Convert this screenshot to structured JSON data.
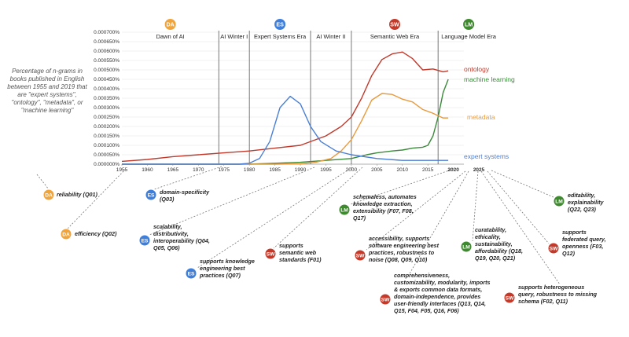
{
  "description": "Percentage of n-grams in books published in English between 1955 and 2019 that are \"expert systems\", \"ontology\", \"metadata\", or \"machine learning\"",
  "colors": {
    "ontology": "#c0392b",
    "machine_learning": "#3a8a3a",
    "metadata": "#e89a3c",
    "expert_systems": "#4a7fd4",
    "DA": "#f0a43a",
    "ES": "#3f7fdc",
    "SW": "#c33a2a",
    "LM": "#3e8a2e"
  },
  "eras": [
    {
      "label": "Dawn of AI",
      "badge": "DA"
    },
    {
      "label": "AI Winter I",
      "badge": ""
    },
    {
      "label": "Expert Systems Era",
      "badge": "ES"
    },
    {
      "label": "AI Winter II",
      "badge": ""
    },
    {
      "label": "Semantic Web Era",
      "badge": "SW"
    },
    {
      "label": "Language Model Era",
      "badge": "LM"
    }
  ],
  "chart_data": {
    "type": "line",
    "xlim": [
      1955,
      2029
    ],
    "ylim": [
      0,
      0.0007
    ],
    "x_ticks": [
      "1955",
      "1960",
      "1965",
      "1970",
      "1975",
      "1980",
      "1985",
      "1990",
      "1995",
      "2000",
      "2005",
      "2010",
      "2015"
    ],
    "x_ticks_extra": [
      "2020",
      "2025"
    ],
    "y_ticks": [
      "0.000000%",
      "0.000050%",
      "0.000100%",
      "0.000150%",
      "0.000200%",
      "0.000250%",
      "0.000300%",
      "0.000350%",
      "0.000400%",
      "0.000450%",
      "0.000500%",
      "0.000550%",
      "0.000600%",
      "0.000650%",
      "0.000700%"
    ],
    "era_boundaries": [
      1974,
      1980,
      1992,
      2000,
      2017
    ],
    "series": [
      {
        "name": "ontology",
        "key": "ontology",
        "x": [
          1955,
          1960,
          1965,
          1970,
          1975,
          1980,
          1985,
          1990,
          1995,
          1998,
          2000,
          2002,
          2004,
          2006,
          2008,
          2010,
          2012,
          2014,
          2016,
          2018,
          2019
        ],
        "y": [
          1.5e-05,
          2.5e-05,
          4e-05,
          5e-05,
          6e-05,
          7e-05,
          8.5e-05,
          0.0001,
          0.00015,
          0.0002,
          0.00025,
          0.00035,
          0.00047,
          0.000555,
          0.000585,
          0.000595,
          0.00056,
          0.0005,
          0.000505,
          0.00049,
          0.000495
        ]
      },
      {
        "name": "machine learning",
        "key": "machine_learning",
        "x": [
          1955,
          1980,
          1985,
          1990,
          1995,
          2000,
          2003,
          2005,
          2008,
          2010,
          2012,
          2014,
          2015,
          2016,
          2017,
          2018,
          2019
        ],
        "y": [
          0,
          0,
          5e-06,
          1e-05,
          2e-05,
          3e-05,
          5e-05,
          6e-05,
          7e-05,
          7.5e-05,
          8.5e-05,
          9e-05,
          0.0001,
          0.00015,
          0.00025,
          0.00038,
          0.00045
        ]
      },
      {
        "name": "metadata",
        "key": "metadata",
        "x": [
          1955,
          1985,
          1990,
          1993,
          1996,
          1998,
          2000,
          2002,
          2004,
          2006,
          2008,
          2010,
          2012,
          2014,
          2016,
          2018,
          2019
        ],
        "y": [
          0,
          0,
          2e-06,
          1e-05,
          3e-05,
          7e-05,
          0.00013,
          0.00023,
          0.00034,
          0.000375,
          0.00037,
          0.000345,
          0.00033,
          0.00029,
          0.00027,
          0.000245,
          0.000245
        ]
      },
      {
        "name": "expert systems",
        "key": "expert_systems",
        "x": [
          1955,
          1978,
          1980,
          1982,
          1984,
          1986,
          1988,
          1990,
          1992,
          1994,
          1997,
          2000,
          2005,
          2010,
          2015,
          2019
        ],
        "y": [
          0,
          0,
          5e-06,
          3e-05,
          0.00012,
          0.0003,
          0.00036,
          0.00032,
          0.0002,
          0.00012,
          7e-05,
          5e-05,
          3e-05,
          2e-05,
          2e-05,
          2e-05
        ]
      }
    ]
  },
  "annotations": [
    {
      "badge": "DA",
      "text": "reliability (Q01)"
    },
    {
      "badge": "DA",
      "text": "efficiency (Q02)"
    },
    {
      "badge": "ES",
      "text": "domain-specificity\n(Q03)"
    },
    {
      "badge": "ES",
      "text": "scalability,\ndistributivity,\ninteroperability (Q04,\nQ05, Q06)"
    },
    {
      "badge": "ES",
      "text": "supports knowledge\nengineering best\npractices (Q07)"
    },
    {
      "badge": "SW",
      "text": "supports\nsemantic web\nstandards (F01)"
    },
    {
      "badge": "LM",
      "text": "schemaless, automates\nknowledge extraction,\nextensibility (F07, F08,\nQ17)"
    },
    {
      "badge": "SW",
      "text": "accessibility, supports\nsoftware engineering best\npractices, robustness to\nnoise (Q08, Q09, Q10)"
    },
    {
      "badge": "LM",
      "text": "curatability,\nethicality,\nsustainability,\naffordability (Q18,\nQ19, Q20, Q21)"
    },
    {
      "badge": "LM",
      "text": "editability,\nexplainability\n(Q22, Q23)"
    },
    {
      "badge": "SW",
      "text": "supports\nfederated query,\nopenness (F03,\nQ12)"
    },
    {
      "badge": "SW",
      "text": "comprehensiveness,\ncustomizability, modularity, imports\n& exports common data formats,\ndomain-independence, provides\nuser-friendly interfaces (Q13, Q14,\nQ15, F04, F05, Q16, F06)"
    },
    {
      "badge": "SW",
      "text": "supports heterogeneous\nquery, robustness to missing\nschema (F02, Q11)"
    }
  ]
}
